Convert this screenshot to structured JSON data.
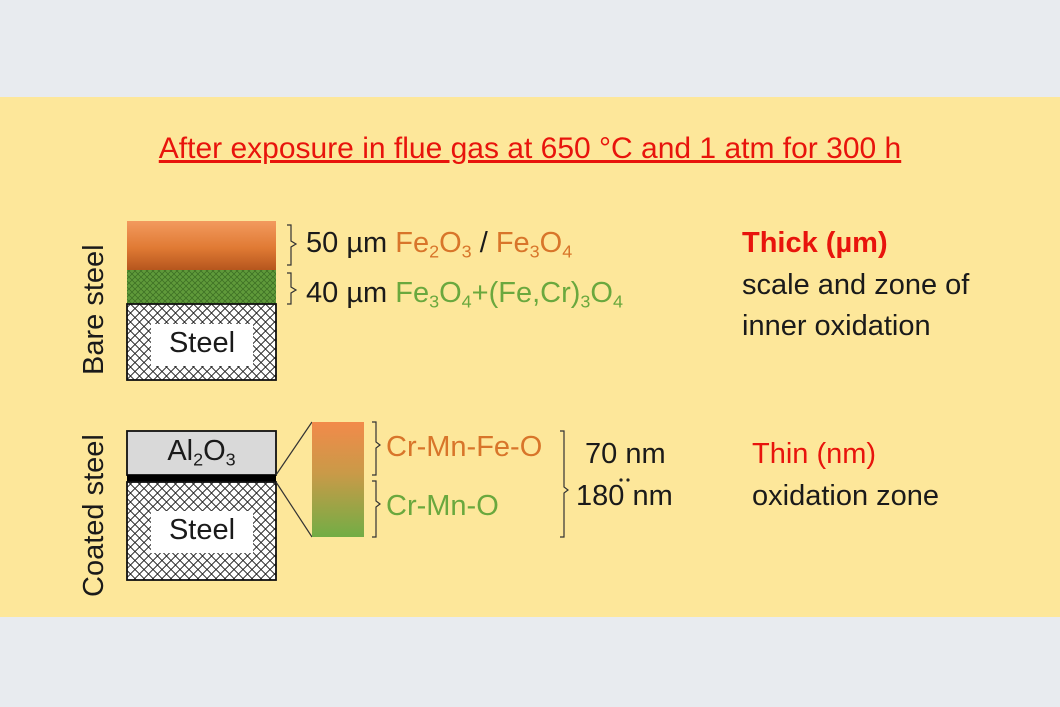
{
  "title": "After exposure in flue gas at 650 °C and 1 atm for 300 h",
  "bare": {
    "side_label": "Bare steel",
    "steel_label": "Steel",
    "layer1_thickness": "50 µm",
    "layer1_phase_a": [
      "Fe",
      "2",
      "O",
      "3"
    ],
    "layer1_sep": " / ",
    "layer1_phase_b": [
      "Fe",
      "3",
      "O",
      "4"
    ],
    "layer2_thickness": "40 µm",
    "layer2_phase": [
      "Fe",
      "3",
      "O",
      "4",
      "+(Fe,Cr)",
      "3",
      "O",
      "4"
    ],
    "result_heading": "Thick (µm)",
    "result_line1": "scale and zone of",
    "result_line2": "inner oxidation"
  },
  "coated": {
    "side_label": "Coated steel",
    "coating_label": [
      "Al",
      "2",
      "O",
      "3"
    ],
    "steel_label": "Steel",
    "zone_outer": "Cr-Mn-Fe-O",
    "zone_inner": "Cr-Mn-O",
    "thickness_1": "70 nm",
    "thickness_2": "180 nm",
    "result_heading": "Thin (nm)",
    "result_line1": "oxidation zone"
  },
  "colors": {
    "background": "#e8ebef",
    "panel": "#fde79a",
    "title_red": "#e8140c",
    "oxide_orange": "#d8752a",
    "oxide_green": "#6aa83e"
  }
}
